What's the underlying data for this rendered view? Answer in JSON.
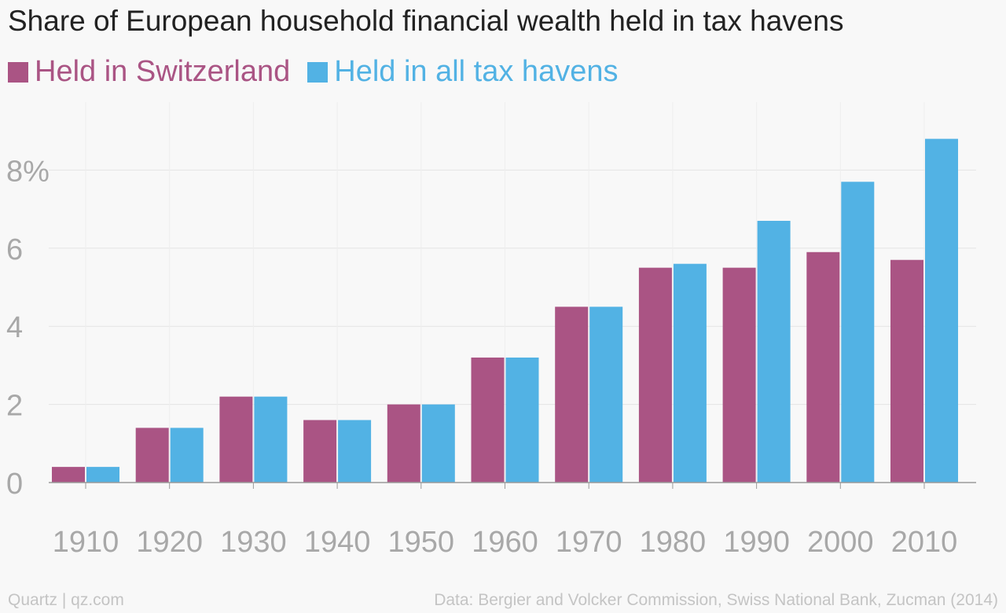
{
  "title": "Share of European household financial wealth held in tax havens",
  "footer": {
    "credit": "Quartz | qz.com",
    "source": "Data: Bergier and Volcker Commission, Swiss National Bank, Zucman (2014)"
  },
  "colors": {
    "switzerland": "#aa5484",
    "all_havens": "#52b2e4",
    "grid": "#e4e4e4",
    "axis": "#9a9a9a",
    "tick_text": "#a8a8a8"
  },
  "chart_data": {
    "type": "bar",
    "title": "Share of European household financial wealth held in tax havens",
    "xlabel": "",
    "ylabel": "",
    "categories": [
      "1910",
      "1920",
      "1930",
      "1940",
      "1950",
      "1960",
      "1970",
      "1980",
      "1990",
      "2000",
      "2010"
    ],
    "series": [
      {
        "name": "Held in Switzerland",
        "values": [
          0.4,
          1.4,
          2.2,
          1.6,
          2.0,
          3.2,
          4.5,
          5.5,
          5.5,
          5.9,
          5.7
        ]
      },
      {
        "name": "Held in all tax havens",
        "values": [
          0.4,
          1.4,
          2.2,
          1.6,
          2.0,
          3.2,
          4.5,
          5.6,
          6.7,
          7.7,
          8.8
        ]
      }
    ],
    "ylim": [
      0,
      9
    ],
    "yticks": [
      0,
      2,
      4,
      6,
      8
    ],
    "ytick_labels": [
      "0",
      "2",
      "4",
      "6",
      "8%"
    ],
    "grid": true,
    "legend_position": "top-left"
  }
}
